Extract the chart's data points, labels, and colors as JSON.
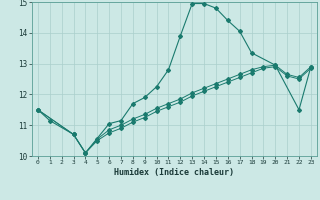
{
  "background_color": "#cce8e5",
  "grid_color": "#aacfcc",
  "line_color": "#1a7a6e",
  "xlabel": "Humidex (Indice chaleur)",
  "xlim": [
    -0.5,
    23.5
  ],
  "ylim": [
    10,
    15
  ],
  "yticks": [
    10,
    11,
    12,
    13,
    14,
    15
  ],
  "xticks": [
    0,
    1,
    2,
    3,
    4,
    5,
    6,
    7,
    8,
    9,
    10,
    11,
    12,
    13,
    14,
    15,
    16,
    17,
    18,
    19,
    20,
    21,
    22,
    23
  ],
  "curve_x": [
    0,
    1,
    3,
    4,
    6,
    7,
    8,
    9,
    10,
    11,
    12,
    13,
    14,
    15,
    16,
    17,
    18,
    20,
    22,
    23
  ],
  "curve_y": [
    11.5,
    11.15,
    10.7,
    10.1,
    11.05,
    11.15,
    11.7,
    11.9,
    12.25,
    12.8,
    13.9,
    14.95,
    14.95,
    14.8,
    14.4,
    14.05,
    13.35,
    12.95,
    11.5,
    12.9
  ],
  "line1_x": [
    0,
    3,
    4,
    5,
    6,
    7,
    8,
    9,
    10,
    11,
    12,
    13,
    14,
    15,
    16,
    17,
    18,
    19,
    20,
    21,
    22,
    23
  ],
  "line1_y": [
    11.5,
    10.7,
    10.1,
    10.55,
    10.85,
    11.0,
    11.2,
    11.35,
    11.55,
    11.7,
    11.85,
    12.05,
    12.2,
    12.35,
    12.5,
    12.65,
    12.8,
    12.9,
    12.95,
    12.65,
    12.55,
    12.9
  ],
  "line2_x": [
    0,
    3,
    4,
    5,
    6,
    7,
    8,
    9,
    10,
    11,
    12,
    13,
    14,
    15,
    16,
    17,
    18,
    19,
    20,
    21,
    22,
    23
  ],
  "line2_y": [
    11.5,
    10.7,
    10.1,
    10.5,
    10.75,
    10.9,
    11.1,
    11.25,
    11.45,
    11.6,
    11.75,
    11.95,
    12.1,
    12.25,
    12.4,
    12.55,
    12.7,
    12.85,
    12.9,
    12.6,
    12.5,
    12.85
  ]
}
